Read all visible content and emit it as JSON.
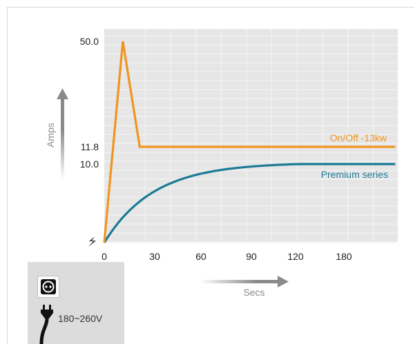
{
  "chart_data": {
    "type": "line",
    "xlabel": "Secs",
    "ylabel": "Amps",
    "x_ticks": [
      0,
      30,
      60,
      90,
      120,
      180
    ],
    "y_ticks": [
      10.0,
      11.8,
      50.0
    ],
    "y_tick_labels": [
      "10.0",
      "11.8",
      "50.0"
    ],
    "y_scale": "nonlinear (labeled ticks only)",
    "grid": true,
    "series": [
      {
        "name": "On/Off -13kw",
        "color": "#f0941f",
        "points": [
          [
            0,
            0
          ],
          [
            11,
            50.0
          ],
          [
            21,
            11.8
          ],
          [
            172,
            11.8
          ]
        ]
      },
      {
        "name": "Premium series",
        "color": "#1b7a96",
        "description": "exponential rise from 0 to a steady 10.0 A",
        "points": [
          [
            0,
            0
          ],
          [
            15,
            2.8
          ],
          [
            30,
            5.0
          ],
          [
            45,
            6.6
          ],
          [
            60,
            7.8
          ],
          [
            75,
            8.7
          ],
          [
            90,
            9.3
          ],
          [
            105,
            9.75
          ],
          [
            115,
            10.0
          ],
          [
            172,
            10.0
          ]
        ]
      }
    ]
  },
  "power": {
    "voltage": "180~260V",
    "socket_icon": "power-socket-icon",
    "plug_icon": "power-plug-icon"
  },
  "colors": {
    "plot_bg": "#e6e6e6",
    "arrow_gray": "#8a8a8a",
    "panel_bg": "#dcdcdc"
  }
}
